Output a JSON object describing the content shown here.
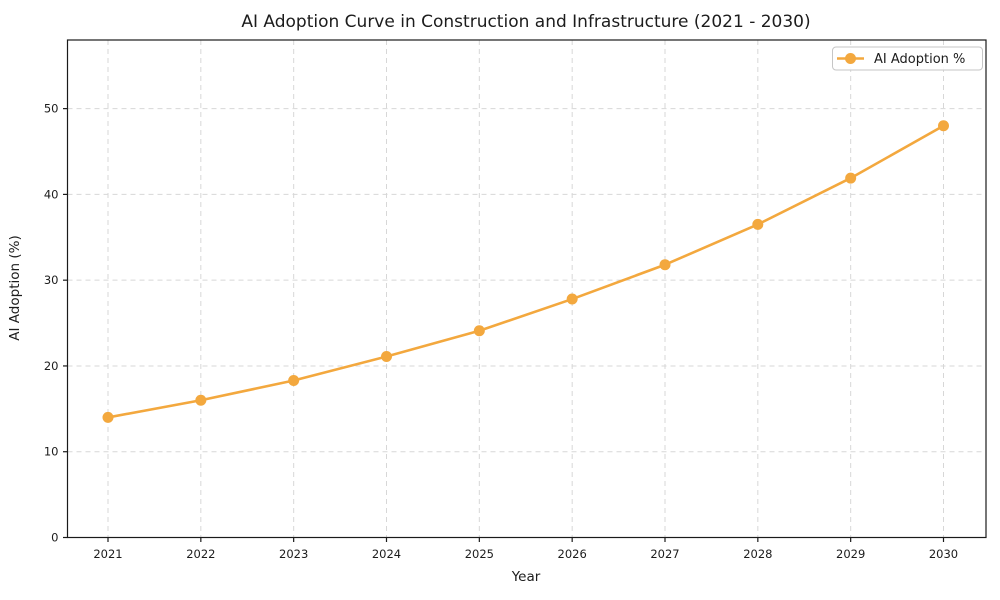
{
  "chart_data": {
    "type": "line",
    "title": "AI Adoption Curve in Construction and Infrastructure (2021 - 2030)",
    "xlabel": "Year",
    "ylabel": "AI Adoption (%)",
    "x": [
      2021,
      2022,
      2023,
      2024,
      2025,
      2026,
      2027,
      2028,
      2029,
      2030
    ],
    "series": [
      {
        "name": "AI Adoption %",
        "values": [
          14.0,
          16.0,
          18.3,
          21.1,
          24.1,
          27.8,
          31.8,
          36.5,
          41.9,
          48.0
        ],
        "color": "#F3A83E",
        "marker": "circle",
        "line_style": "solid"
      }
    ],
    "ylim": [
      0,
      58
    ],
    "yticks": [
      0,
      10,
      20,
      30,
      40,
      50
    ],
    "grid": true,
    "grid_style": "dashed",
    "grid_color": "#d7d7d7",
    "axis_color": "#1a1a1a",
    "text_color": "#1c1c1c",
    "legend": {
      "position": "top-right",
      "entries": [
        "AI Adoption %"
      ]
    }
  }
}
